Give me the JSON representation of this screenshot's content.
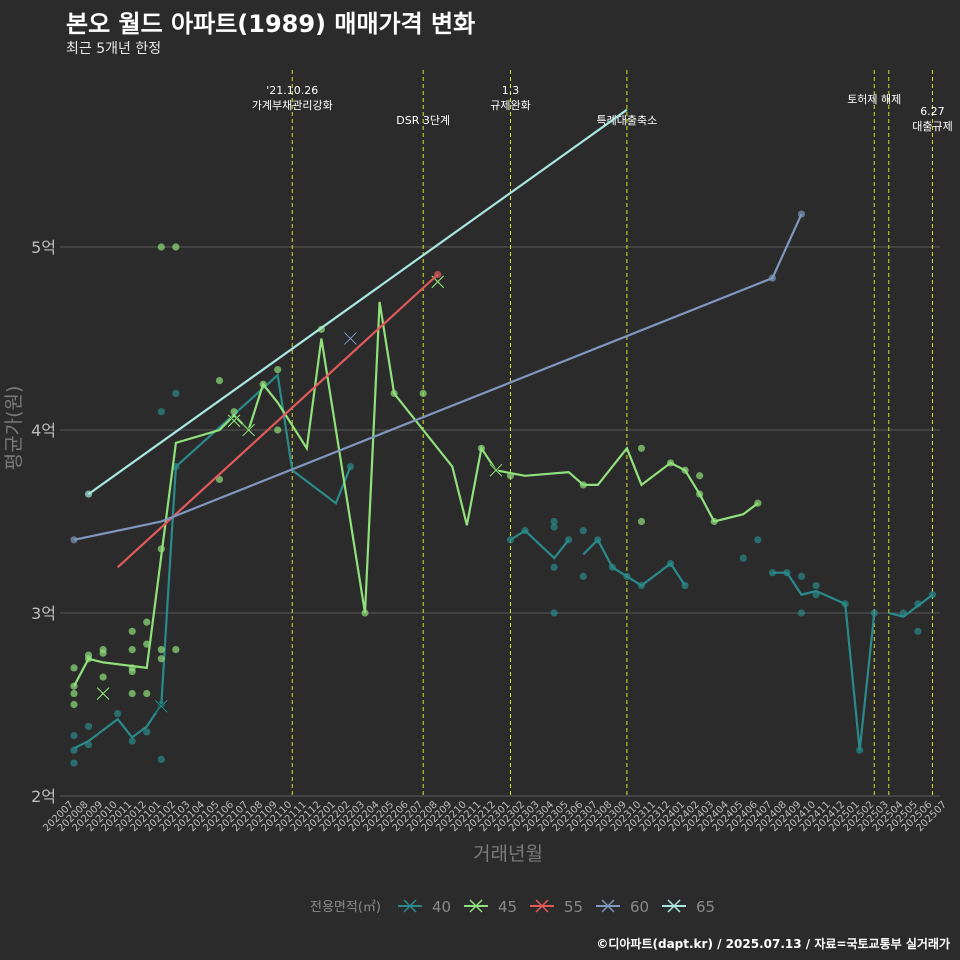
{
  "header": {
    "title": "본오 월드 아파트(1989) 매매가격 변화",
    "subtitle": "최근 5개년 한정",
    "footer": "©디아파트(dapt.kr) / 2025.07.13 / 자료=국토교통부 실거래가"
  },
  "chart_data": {
    "type": "line",
    "title": "본오 월드 아파트(1989) 매매가격 변화",
    "subtitle": "최근 5개년 한정",
    "xlabel": "거래년월",
    "ylabel": "평균가(원)",
    "ylim": [
      2,
      5.9
    ],
    "y_ticks": [
      {
        "v": 2,
        "label": "2억"
      },
      {
        "v": 3,
        "label": "3억"
      },
      {
        "v": 4,
        "label": "4억"
      },
      {
        "v": 5,
        "label": "5억"
      }
    ],
    "categories": [
      "202007",
      "202008",
      "202009",
      "202010",
      "202011",
      "202012",
      "202101",
      "202102",
      "202103",
      "202104",
      "202105",
      "202106",
      "202107",
      "202108",
      "202109",
      "202110",
      "202111",
      "202112",
      "202201",
      "202202",
      "202203",
      "202204",
      "202205",
      "202206",
      "202207",
      "202208",
      "202209",
      "202210",
      "202211",
      "202212",
      "202301",
      "202302",
      "202303",
      "202304",
      "202305",
      "202306",
      "202307",
      "202308",
      "202309",
      "202310",
      "202311",
      "202312",
      "202401",
      "202402",
      "202403",
      "202404",
      "202405",
      "202406",
      "202407",
      "202408",
      "202409",
      "202410",
      "202411",
      "202412",
      "202501",
      "202502",
      "202503",
      "202504",
      "202505",
      "202506",
      "202507"
    ],
    "legend_title": "전용면적(㎡)",
    "series": [
      {
        "name": "40",
        "color": "#2a8a8a",
        "line": [
          [
            0,
            2.26
          ],
          [
            1,
            2.3
          ],
          [
            3,
            2.42
          ],
          [
            4,
            2.32
          ],
          [
            5,
            2.38
          ],
          [
            6,
            2.5
          ],
          [
            7,
            3.8
          ],
          [
            14,
            4.3
          ],
          [
            15,
            3.78
          ],
          [
            18,
            3.6
          ],
          [
            19,
            3.8
          ],
          [
            null,
            null
          ],
          [
            30,
            3.4
          ],
          [
            31,
            3.45
          ],
          [
            33,
            3.3
          ],
          [
            34,
            3.4
          ],
          [
            null,
            null
          ],
          [
            35,
            3.32
          ],
          [
            36,
            3.4
          ],
          [
            37,
            3.25
          ],
          [
            38,
            3.2
          ],
          [
            39,
            3.15
          ],
          [
            41,
            3.27
          ],
          [
            42,
            3.15
          ],
          [
            null,
            null
          ],
          [
            48,
            3.22
          ],
          [
            49,
            3.22
          ],
          [
            50,
            3.1
          ],
          [
            51,
            3.12
          ],
          [
            53,
            3.05
          ],
          [
            54,
            2.25
          ],
          [
            55,
            3.0
          ],
          [
            null,
            null
          ],
          [
            56,
            3.0
          ],
          [
            57,
            2.98
          ],
          [
            59,
            3.1
          ]
        ],
        "points": [
          [
            0,
            2.18
          ],
          [
            0,
            2.25
          ],
          [
            0,
            2.33
          ],
          [
            1,
            2.28
          ],
          [
            1,
            2.38
          ],
          [
            3,
            2.45
          ],
          [
            4,
            2.3
          ],
          [
            5,
            2.35
          ],
          [
            6,
            2.2
          ],
          [
            6,
            2.5
          ],
          [
            6,
            4.1
          ],
          [
            7,
            3.8
          ],
          [
            7,
            4.2
          ],
          [
            19,
            3.8
          ],
          [
            30,
            3.4
          ],
          [
            31,
            3.45
          ],
          [
            33,
            3.0
          ],
          [
            33,
            3.25
          ],
          [
            33,
            3.47
          ],
          [
            33,
            3.5
          ],
          [
            34,
            3.4
          ],
          [
            35,
            3.2
          ],
          [
            35,
            3.45
          ],
          [
            36,
            3.4
          ],
          [
            37,
            3.25
          ],
          [
            38,
            3.2
          ],
          [
            39,
            3.15
          ],
          [
            41,
            3.27
          ],
          [
            42,
            3.15
          ],
          [
            46,
            3.3
          ],
          [
            47,
            3.4
          ],
          [
            48,
            3.22
          ],
          [
            49,
            3.22
          ],
          [
            50,
            3.0
          ],
          [
            50,
            3.2
          ],
          [
            51,
            3.1
          ],
          [
            51,
            3.15
          ],
          [
            53,
            3.05
          ],
          [
            54,
            2.25
          ],
          [
            55,
            3.0
          ],
          [
            57,
            3.0
          ],
          [
            58,
            2.9
          ],
          [
            58,
            3.05
          ],
          [
            59,
            3.1
          ]
        ],
        "crosses": [
          [
            6,
            2.49
          ]
        ]
      },
      {
        "name": "45",
        "color": "#90e07c",
        "line": [
          [
            0,
            2.6
          ],
          [
            1,
            2.75
          ],
          [
            2,
            2.73
          ],
          [
            5,
            2.7
          ],
          [
            7,
            3.93
          ],
          [
            10,
            4.0
          ],
          [
            11,
            4.08
          ],
          [
            12,
            4.0
          ],
          [
            13,
            4.25
          ],
          [
            14,
            4.15
          ],
          [
            16,
            3.9
          ],
          [
            17,
            4.5
          ],
          [
            20,
            3.0
          ],
          [
            21,
            4.7
          ],
          [
            22,
            4.2
          ],
          [
            26,
            3.8
          ],
          [
            27,
            3.48
          ],
          [
            28,
            3.9
          ],
          [
            29,
            3.78
          ],
          [
            31,
            3.75
          ],
          [
            34,
            3.77
          ],
          [
            35,
            3.7
          ],
          [
            36,
            3.7
          ],
          [
            38,
            3.9
          ],
          [
            39,
            3.7
          ],
          [
            41,
            3.82
          ],
          [
            42,
            3.78
          ],
          [
            43,
            3.65
          ],
          [
            44,
            3.5
          ],
          [
            46,
            3.54
          ],
          [
            47,
            3.6
          ]
        ],
        "points": [
          [
            0,
            2.5
          ],
          [
            0,
            2.56
          ],
          [
            0,
            2.6
          ],
          [
            0,
            2.7
          ],
          [
            1,
            2.75
          ],
          [
            1,
            2.77
          ],
          [
            2,
            2.65
          ],
          [
            2,
            2.78
          ],
          [
            2,
            2.8
          ],
          [
            4,
            2.56
          ],
          [
            4,
            2.68
          ],
          [
            4,
            2.7
          ],
          [
            4,
            2.8
          ],
          [
            4,
            2.9
          ],
          [
            5,
            2.56
          ],
          [
            5,
            2.83
          ],
          [
            5,
            2.95
          ],
          [
            6,
            2.75
          ],
          [
            6,
            2.8
          ],
          [
            6,
            3.35
          ],
          [
            6,
            5.0
          ],
          [
            7,
            2.8
          ],
          [
            7,
            5.0
          ],
          [
            10,
            3.73
          ],
          [
            10,
            4.27
          ],
          [
            11,
            4.1
          ],
          [
            13,
            4.25
          ],
          [
            14,
            4.0
          ],
          [
            14,
            4.33
          ],
          [
            17,
            4.55
          ],
          [
            20,
            3.0
          ],
          [
            22,
            4.2
          ],
          [
            24,
            4.2
          ],
          [
            28,
            3.9
          ],
          [
            30,
            3.75
          ],
          [
            35,
            3.7
          ],
          [
            39,
            3.5
          ],
          [
            39,
            3.9
          ],
          [
            41,
            3.82
          ],
          [
            42,
            3.78
          ],
          [
            43,
            3.65
          ],
          [
            43,
            3.75
          ],
          [
            44,
            3.5
          ],
          [
            47,
            3.6
          ]
        ],
        "crosses": [
          [
            2,
            2.56
          ],
          [
            11,
            4.05
          ],
          [
            12,
            4.0
          ],
          [
            25,
            4.81
          ],
          [
            29,
            3.78
          ]
        ]
      },
      {
        "name": "55",
        "color": "#e05a5a",
        "line": [
          [
            3,
            3.25
          ],
          [
            25,
            4.85
          ]
        ],
        "points": [
          [
            25,
            4.85
          ]
        ],
        "crosses": []
      },
      {
        "name": "60",
        "color": "#7f97bf",
        "line": [
          [
            0,
            3.4
          ],
          [
            6,
            3.5
          ],
          [
            48,
            4.83
          ],
          [
            50,
            5.18
          ]
        ],
        "points": [
          [
            0,
            3.4
          ],
          [
            48,
            4.83
          ],
          [
            50,
            5.18
          ]
        ],
        "crosses": [
          [
            19,
            4.5
          ]
        ]
      },
      {
        "name": "65",
        "color": "#a8e8e0",
        "line": [
          [
            1,
            3.65
          ],
          [
            38,
            5.75
          ]
        ],
        "points": [
          [
            1,
            3.65
          ]
        ],
        "crosses": []
      }
    ],
    "events": [
      {
        "x": 15,
        "lines": [
          "'21.10.26",
          "가계부채관리강화"
        ]
      },
      {
        "x": 24,
        "lines": [
          "DSR 3단계"
        ]
      },
      {
        "x": 30,
        "lines": [
          "1.3",
          "규제완화"
        ]
      },
      {
        "x": 38,
        "lines": [
          "특례대출축소"
        ]
      },
      {
        "x": 55,
        "lines": [
          "토허제 해제"
        ]
      },
      {
        "x": 56,
        "lines": []
      },
      {
        "x": 59,
        "lines": [
          "6.27",
          "대출규제"
        ]
      }
    ]
  }
}
